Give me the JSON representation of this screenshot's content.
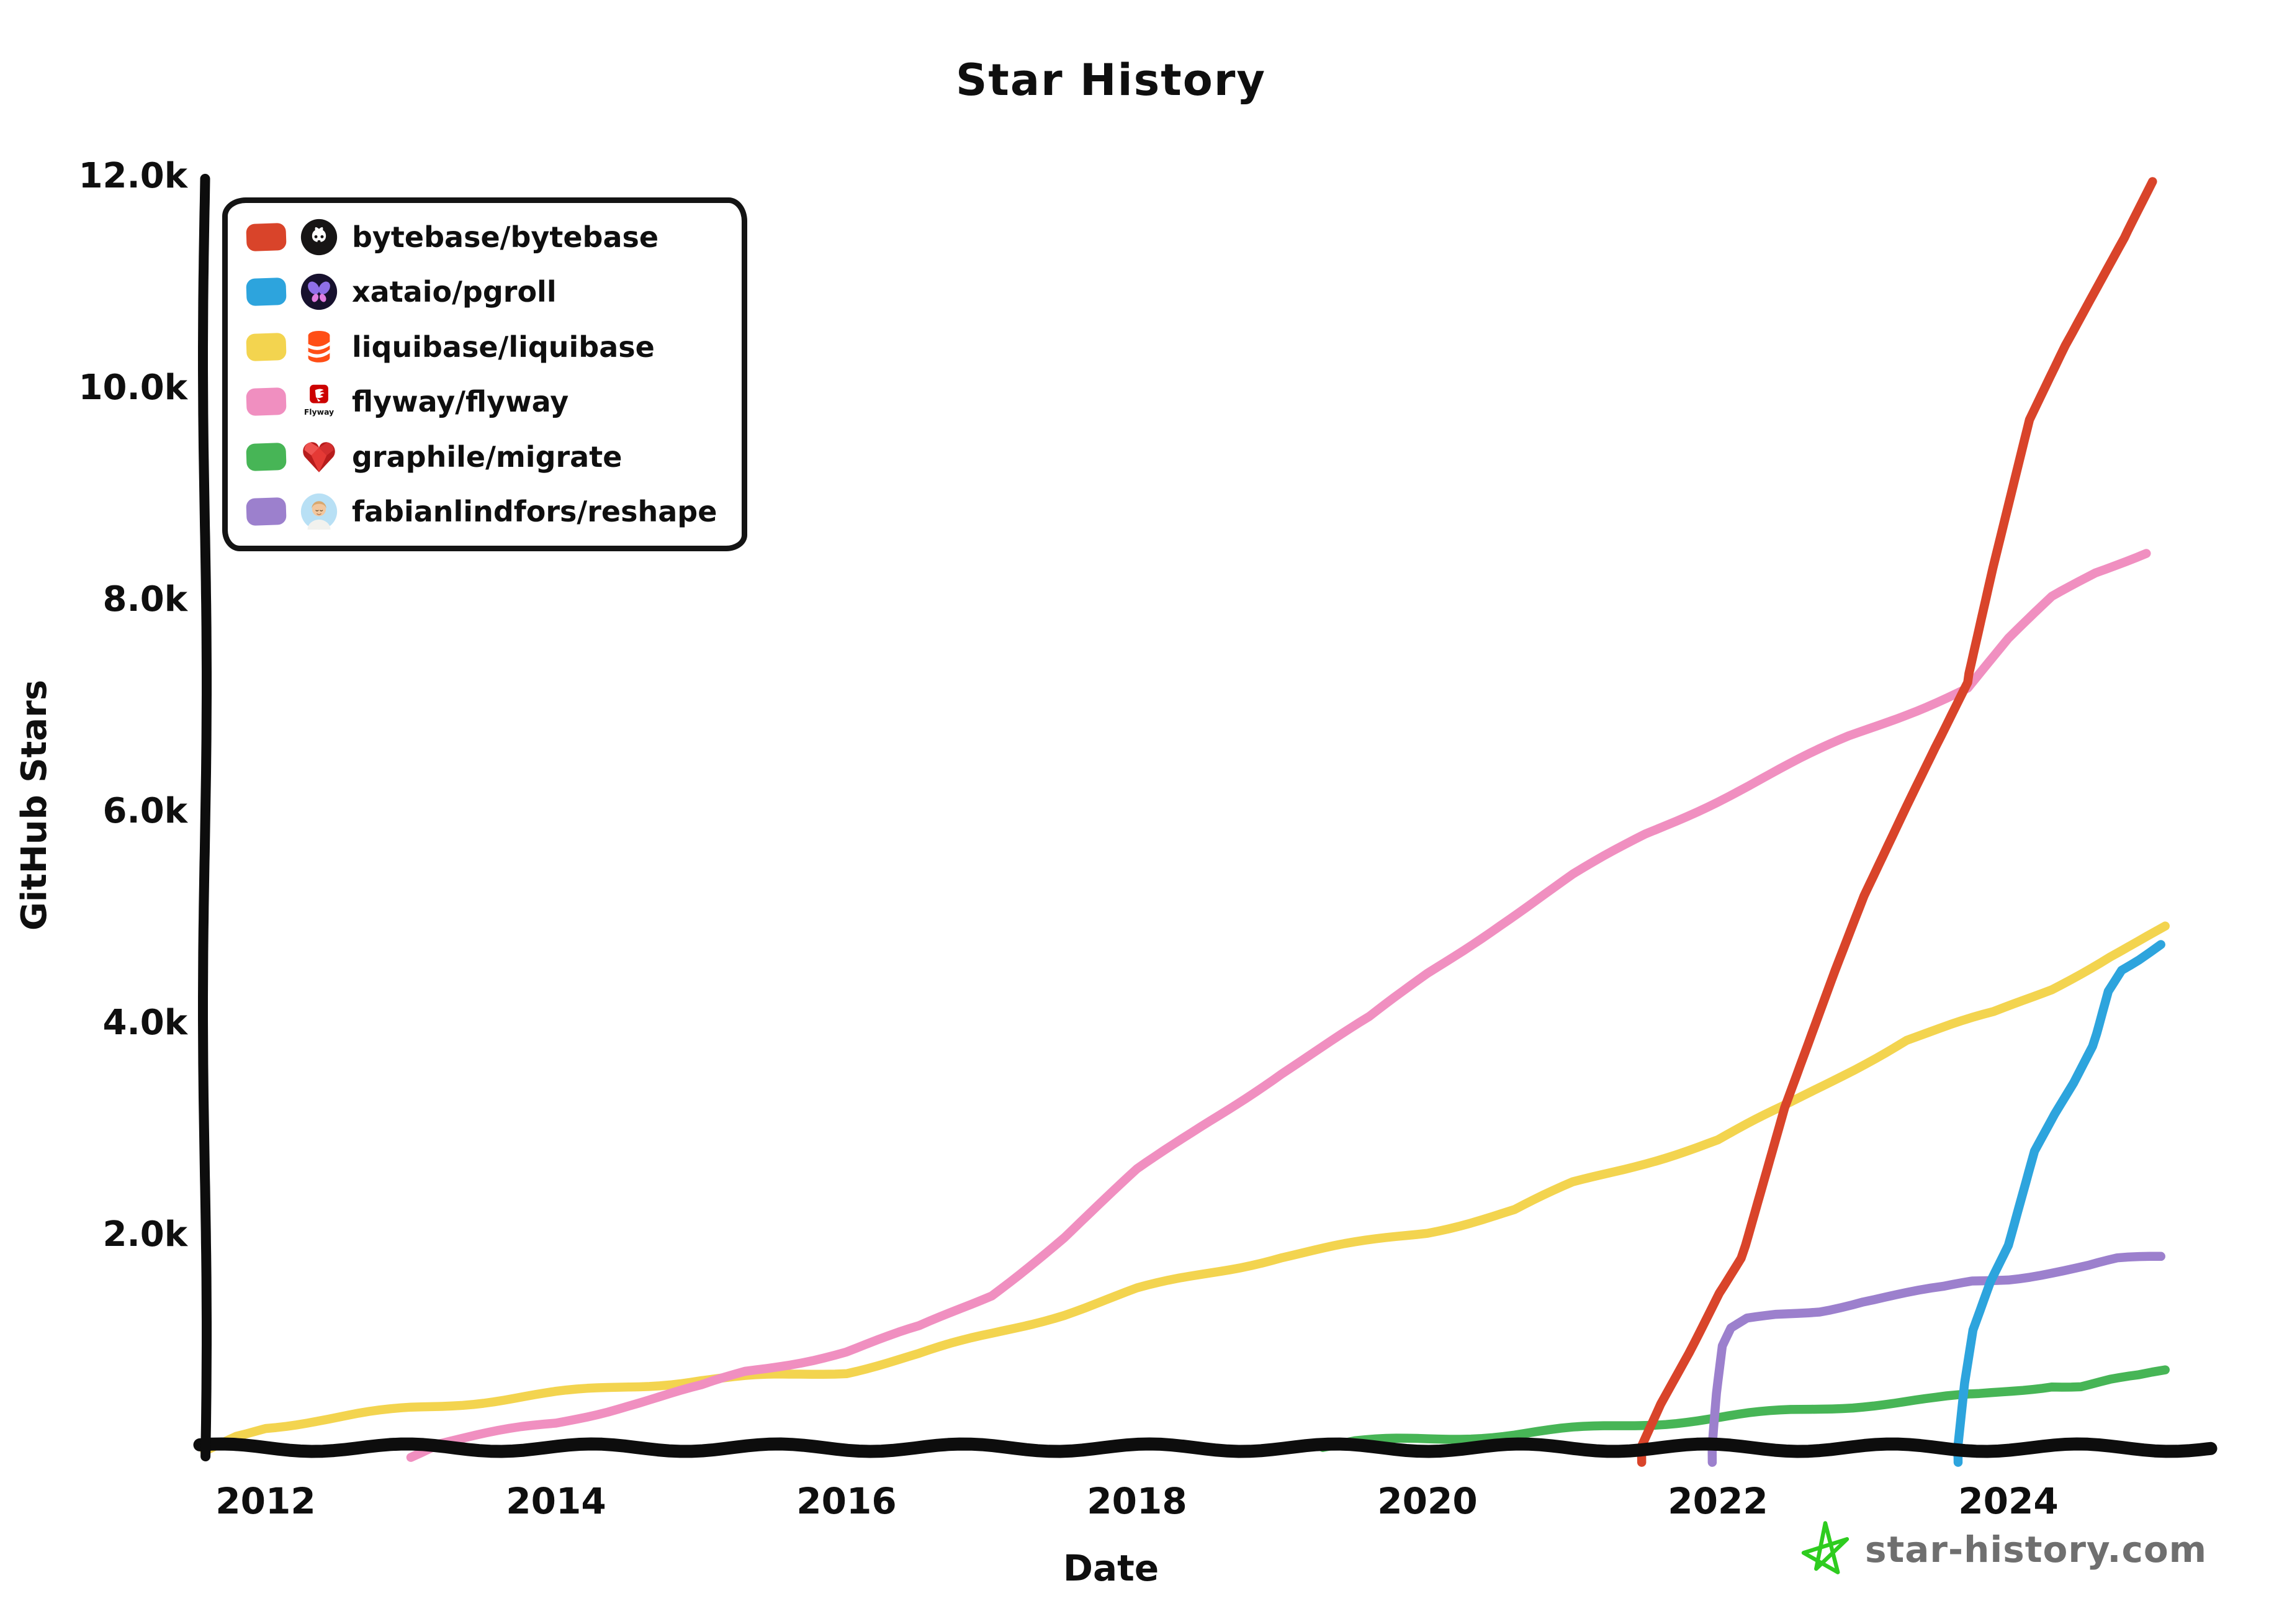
{
  "title": "Star History",
  "y_axis": {
    "title": "GitHub Stars",
    "ticks": [
      {
        "label": "12.0k",
        "value": 12000
      },
      {
        "label": "10.0k",
        "value": 10000
      },
      {
        "label": "8.0k",
        "value": 8000
      },
      {
        "label": "6.0k",
        "value": 6000
      },
      {
        "label": "4.0k",
        "value": 4000
      },
      {
        "label": "2.0k",
        "value": 2000
      }
    ]
  },
  "x_axis": {
    "title": "Date",
    "ticks": [
      {
        "label": "2012",
        "year": 2012
      },
      {
        "label": "2014",
        "year": 2014
      },
      {
        "label": "2016",
        "year": 2016
      },
      {
        "label": "2018",
        "year": 2018
      },
      {
        "label": "2020",
        "year": 2020
      },
      {
        "label": "2022",
        "year": 2022
      },
      {
        "label": "2024",
        "year": 2024
      }
    ]
  },
  "legend": {
    "items": [
      {
        "label": "bytebase/bytebase",
        "color": "#d9442a",
        "icon": "github-octocat-icon"
      },
      {
        "label": "xataio/pgroll",
        "color": "#2da4dd",
        "icon": "xata-butterfly-icon"
      },
      {
        "label": "liquibase/liquibase",
        "color": "#f3d44f",
        "icon": "liquibase-logo-icon"
      },
      {
        "label": "flyway/flyway",
        "color": "#f08fc0",
        "icon": "flyway-logo-icon"
      },
      {
        "label": "graphile/migrate",
        "color": "#47b556",
        "icon": "ruby-heart-icon"
      },
      {
        "label": "fabianlindfors/reshape",
        "color": "#9c80cd",
        "icon": "avatar-icon"
      }
    ]
  },
  "watermark": {
    "text": "star-history.com",
    "text_color": "#6f6f6f",
    "star_color": "#2ecc1f"
  },
  "chart_data": {
    "type": "line",
    "title": "Star History",
    "xlabel": "Date",
    "ylabel": "GitHub Stars",
    "x_unit": "decimal-year",
    "xlim": [
      2011.55,
      2025.4
    ],
    "ylim": [
      0,
      12100
    ],
    "grid": false,
    "legend_position": "top-left",
    "series": [
      {
        "name": "bytebase/bytebase",
        "color": "#d9442a",
        "points": [
          [
            2021.47,
            -150
          ],
          [
            2021.47,
            0
          ],
          [
            2021.6,
            400
          ],
          [
            2021.8,
            900
          ],
          [
            2022.0,
            1450
          ],
          [
            2022.16,
            1800
          ],
          [
            2022.45,
            3200
          ],
          [
            2022.8,
            4500
          ],
          [
            2023.0,
            5200
          ],
          [
            2023.3,
            6050
          ],
          [
            2023.5,
            6600
          ],
          [
            2023.72,
            7200
          ],
          [
            2023.9,
            8300
          ],
          [
            2024.15,
            9700
          ],
          [
            2024.4,
            10400
          ],
          [
            2024.6,
            10900
          ],
          [
            2024.8,
            11400
          ],
          [
            2025.0,
            11950
          ]
        ]
      },
      {
        "name": "xataio/pgroll",
        "color": "#2da4dd",
        "points": [
          [
            2023.65,
            -150
          ],
          [
            2023.65,
            0
          ],
          [
            2023.7,
            600
          ],
          [
            2023.76,
            1100
          ],
          [
            2023.88,
            1560
          ],
          [
            2024.0,
            1900
          ],
          [
            2024.18,
            2790
          ],
          [
            2024.32,
            3150
          ],
          [
            2024.45,
            3450
          ],
          [
            2024.58,
            3800
          ],
          [
            2024.68,
            4300
          ],
          [
            2024.78,
            4520
          ],
          [
            2024.9,
            4620
          ],
          [
            2025.05,
            4760
          ]
        ]
      },
      {
        "name": "liquibase/liquibase",
        "color": "#f3d44f",
        "points": [
          [
            2011.58,
            -60
          ],
          [
            2011.8,
            100
          ],
          [
            2012,
            190
          ],
          [
            2012.5,
            270
          ],
          [
            2013,
            360
          ],
          [
            2013.5,
            430
          ],
          [
            2014,
            500
          ],
          [
            2014.5,
            570
          ],
          [
            2015,
            630
          ],
          [
            2015.6,
            670
          ],
          [
            2016,
            710
          ],
          [
            2016.5,
            870
          ],
          [
            2017,
            1060
          ],
          [
            2017.5,
            1260
          ],
          [
            2018,
            1480
          ],
          [
            2018.5,
            1640
          ],
          [
            2019,
            1800
          ],
          [
            2019.5,
            1910
          ],
          [
            2020,
            2030
          ],
          [
            2020.6,
            2230
          ],
          [
            2021,
            2480
          ],
          [
            2021.5,
            2690
          ],
          [
            2022,
            2890
          ],
          [
            2022.45,
            3200
          ],
          [
            2022.8,
            3470
          ],
          [
            2023.3,
            3850
          ],
          [
            2023.9,
            4090
          ],
          [
            2024.3,
            4330
          ],
          [
            2024.7,
            4640
          ],
          [
            2025.08,
            4900
          ]
        ]
      },
      {
        "name": "flyway/flyway",
        "color": "#f08fc0",
        "points": [
          [
            2013.0,
            -80
          ],
          [
            2013.2,
            40
          ],
          [
            2013.6,
            130
          ],
          [
            2014,
            220
          ],
          [
            2014.5,
            400
          ],
          [
            2015,
            560
          ],
          [
            2015.3,
            700
          ],
          [
            2016,
            900
          ],
          [
            2016.5,
            1120
          ],
          [
            2017,
            1440
          ],
          [
            2017.5,
            1980
          ],
          [
            2018,
            2600
          ],
          [
            2018.5,
            3080
          ],
          [
            2019,
            3540
          ],
          [
            2019.6,
            4040
          ],
          [
            2020,
            4470
          ],
          [
            2020.5,
            4940
          ],
          [
            2021,
            5390
          ],
          [
            2021.5,
            5780
          ],
          [
            2022,
            6110
          ],
          [
            2022.5,
            6440
          ],
          [
            2022.9,
            6700
          ],
          [
            2023.3,
            6930
          ],
          [
            2023.72,
            7170
          ],
          [
            2024.0,
            7620
          ],
          [
            2024.3,
            8010
          ],
          [
            2024.6,
            8250
          ],
          [
            2024.95,
            8460
          ]
        ]
      },
      {
        "name": "graphile/migrate",
        "color": "#47b556",
        "points": [
          [
            2019.28,
            0
          ],
          [
            2019.5,
            40
          ],
          [
            2020,
            70
          ],
          [
            2020.6,
            115
          ],
          [
            2021,
            160
          ],
          [
            2021.5,
            215
          ],
          [
            2022,
            270
          ],
          [
            2022.5,
            335
          ],
          [
            2023,
            395
          ],
          [
            2023.5,
            445
          ],
          [
            2023.8,
            485
          ],
          [
            2024.1,
            545
          ],
          [
            2024.3,
            585
          ],
          [
            2024.5,
            575
          ],
          [
            2024.7,
            625
          ],
          [
            2024.9,
            655
          ],
          [
            2025.08,
            705
          ]
        ]
      },
      {
        "name": "fabianlindfors/reshape",
        "color": "#9c80cd",
        "points": [
          [
            2021.97,
            -150
          ],
          [
            2021.97,
            0
          ],
          [
            2022.0,
            500
          ],
          [
            2022.04,
            950
          ],
          [
            2022.1,
            1120
          ],
          [
            2022.2,
            1190
          ],
          [
            2022.4,
            1240
          ],
          [
            2022.7,
            1290
          ],
          [
            2023.0,
            1380
          ],
          [
            2023.3,
            1440
          ],
          [
            2023.55,
            1490
          ],
          [
            2023.75,
            1555
          ],
          [
            2024.0,
            1590
          ],
          [
            2024.3,
            1655
          ],
          [
            2024.55,
            1705
          ],
          [
            2024.75,
            1760
          ],
          [
            2025.05,
            1785
          ]
        ]
      }
    ]
  }
}
